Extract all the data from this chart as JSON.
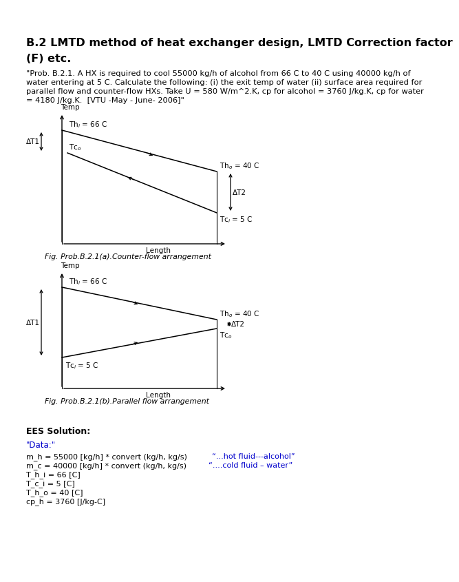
{
  "title_line1": "B.2 LMTD method of heat exchanger design, LMTD Correction factor",
  "title_line2": "(F) etc.",
  "prob_line1": "\"Prob. B.2.1. A HX is required to cool 55000 kg/h of alcohol from 66 C to 40 C using 40000 kg/h of",
  "prob_line2": "water entering at 5 C. Calculate the following: (i) the exit temp of water (ii) surface area required for",
  "prob_line3": "parallel flow and counter-flow HXs. Take U = 580 W/m^2.K, cp for alcohol = 3760 J/kg.K, cp for water",
  "prob_line4": "= 4180 J/kg.K.  [VTU -May - June- 2006]\"",
  "fig_a_caption": "Fig. Prob.B.2.1(a).Counter-flow arrangement",
  "fig_b_caption": "Fig. Prob.B.2.1(b).Parallel flow arrangement",
  "ees_label": "EES Solution:",
  "data_label": "\"Data:\"",
  "code_line1_main": "m_h = 55000 [kg/h] * convert (kg/h, kg/s)  ",
  "code_line1_comment": "“...hot fluid---alcohol”",
  "code_line2_main": "m_c = 40000 [kg/h] * convert (kg/h, kg/s) ",
  "code_line2_comment": "“....cold fluid – water”",
  "code_line3": "T_h_i = 66 [C]",
  "code_line4": "T_c_i = 5 [C]",
  "code_line5": "T_h_o = 40 [C]",
  "code_line6": "cp_h = 3760 [J/kg-C]",
  "background": "#ffffff",
  "text_color": "#000000",
  "blue_color": "#0000cc"
}
